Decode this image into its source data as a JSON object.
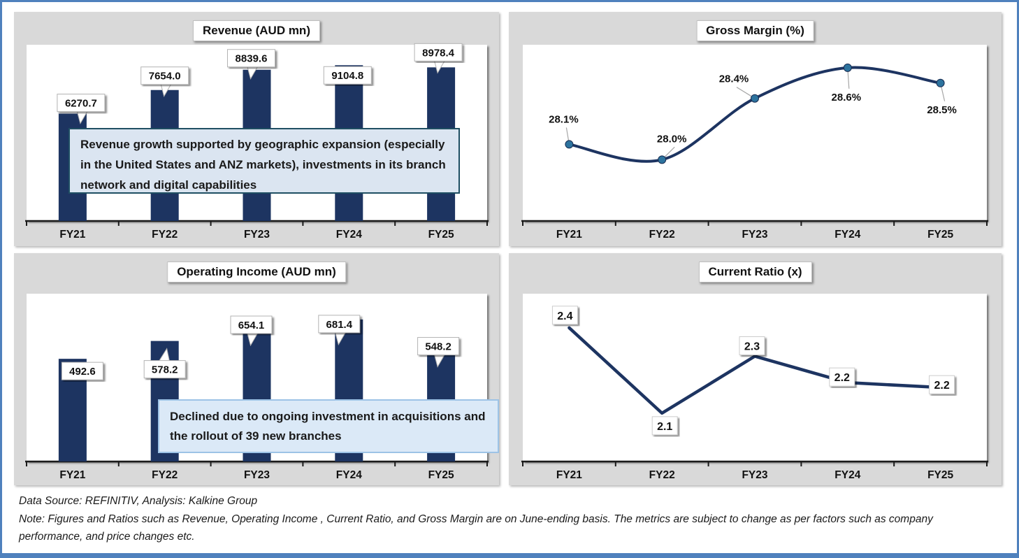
{
  "page": {
    "colors": {
      "page_border": "#4f81bd",
      "panel_background": "#d9d9d9",
      "navy_series": "#1d3461",
      "teal_marker": "#2d739e",
      "revenue_annotation_border": "#1f4f63",
      "revenue_annotation_fill": "#dbe5f1",
      "opinc_annotation_border": "#9dc3e6",
      "opinc_annotation_fill": "#dbe9f7"
    }
  },
  "footer": {
    "source_line": "Data Source: REFINITIV, Analysis: Kalkine Group",
    "note_line": "Note: Figures and Ratios such as Revenue, Operating Income , Current Ratio, and Gross Margin are on  June-ending basis. The metrics are subject to change as per factors such as company performance, and price changes etc."
  },
  "chart_data": [
    {
      "id": "revenue",
      "type": "bar",
      "title": "Revenue (AUD mn)",
      "categories": [
        "FY21",
        "FY22",
        "FY23",
        "FY24",
        "FY25"
      ],
      "values": [
        6270.7,
        7654.0,
        8839.6,
        9104.8,
        8978.4
      ],
      "data_labels": [
        "6270.7",
        "7654.0",
        "8839.6",
        "9104.8",
        "8978.4"
      ],
      "xlabel": "",
      "ylabel": "",
      "ylim": [
        0,
        10300
      ],
      "grid": false,
      "legend": false,
      "bar_color": "#1d3461",
      "annotation": "Revenue growth supported by geographic expansion (especially in the United States and ANZ markets), investments in its branch network and digital capabilities"
    },
    {
      "id": "gross-margin",
      "type": "line",
      "smooth": true,
      "title": "Gross Margin (%)",
      "categories": [
        "FY21",
        "FY22",
        "FY23",
        "FY24",
        "FY25"
      ],
      "values": [
        28.1,
        28.0,
        28.4,
        28.6,
        28.5
      ],
      "data_labels": [
        "28.1%",
        "28.0%",
        "28.4%",
        "28.6%",
        "28.5%"
      ],
      "xlabel": "",
      "ylabel": "",
      "ylim": [
        27.6,
        28.75
      ],
      "grid": false,
      "legend": false,
      "line_color": "#1d3461",
      "marker_color": "#2d739e"
    },
    {
      "id": "operating-income",
      "type": "bar",
      "title": "Operating Income (AUD mn)",
      "categories": [
        "FY21",
        "FY22",
        "FY23",
        "FY24",
        "FY25"
      ],
      "values": [
        492.6,
        578.2,
        654.1,
        681.4,
        548.2
      ],
      "data_labels": [
        "492.6",
        "578.2",
        "654.1",
        "681.4",
        "548.2"
      ],
      "xlabel": "",
      "ylabel": "",
      "ylim": [
        0,
        805
      ],
      "grid": false,
      "legend": false,
      "bar_color": "#1d3461",
      "annotation": "Declined due to ongoing investment in acquisitions and the rollout of 39 new branches"
    },
    {
      "id": "current-ratio",
      "type": "line",
      "smooth": false,
      "title": "Current Ratio (x)",
      "categories": [
        "FY21",
        "FY22",
        "FY23",
        "FY24",
        "FY25"
      ],
      "values": [
        2.4,
        2.1,
        2.3,
        2.2,
        2.2
      ],
      "data_labels": [
        "2.4",
        "2.1",
        "2.3",
        "2.2",
        "2.2"
      ],
      "xlabel": "",
      "ylabel": "",
      "ylim": [
        1.93,
        2.52
      ],
      "grid": false,
      "legend": false,
      "line_color": "#1d3461"
    }
  ]
}
